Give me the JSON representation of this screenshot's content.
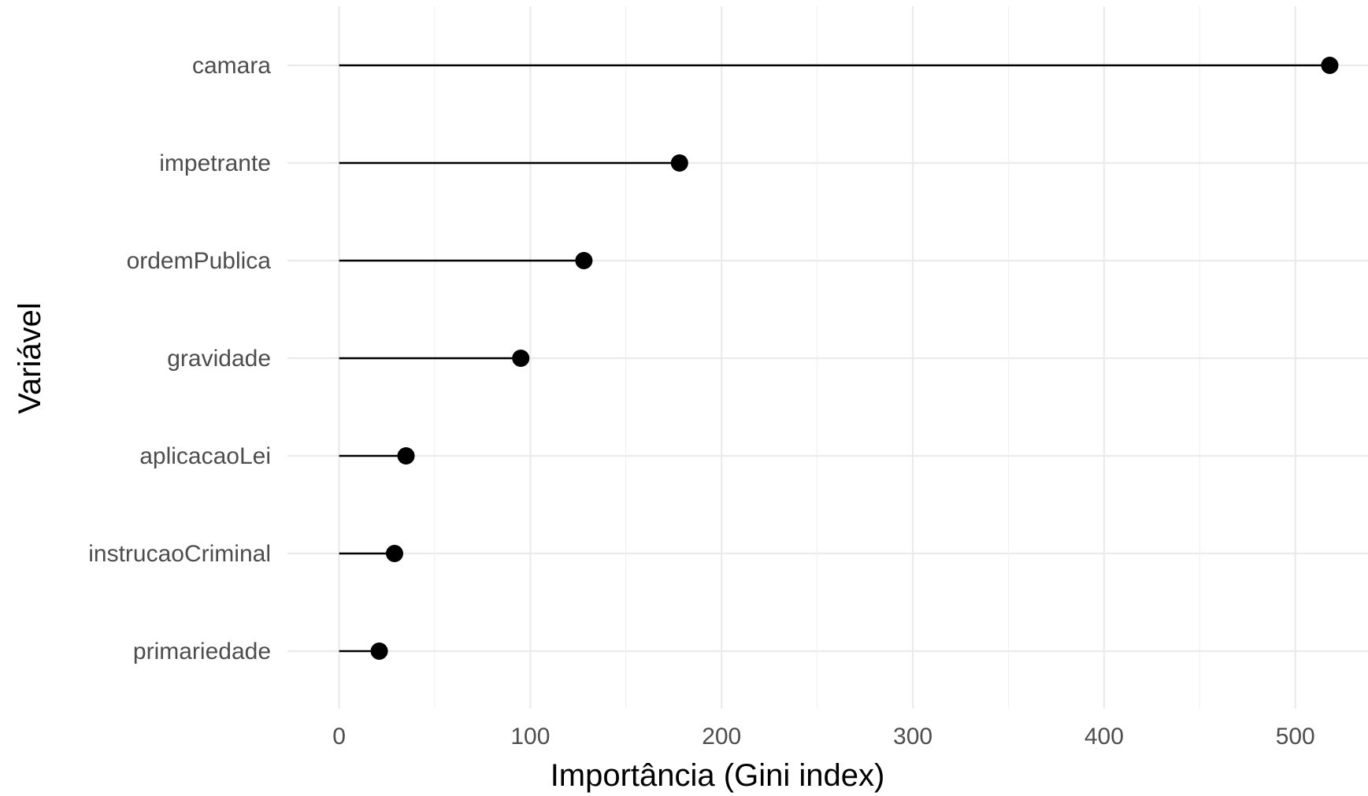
{
  "chart_data": {
    "type": "scatter",
    "style": "lollipop",
    "orientation": "horizontal",
    "categories": [
      "camara",
      "impetrante",
      "ordemPublica",
      "gravidade",
      "aplicacaoLei",
      "instrucaoCriminal",
      "primariedade"
    ],
    "values": [
      518,
      178,
      128,
      95,
      35,
      29,
      21
    ],
    "xlabel": "Importância (Gini index)",
    "ylabel": "Variável",
    "xlim": [
      -27,
      538
    ],
    "xticks": [
      0,
      100,
      200,
      300,
      400,
      500
    ],
    "xtick_labels": [
      "0",
      "100",
      "200",
      "300",
      "400",
      "500"
    ],
    "grid": true,
    "legend": "none",
    "colors": {
      "marker": "#000000",
      "grid": "#ebebeb",
      "tick_text": "#4d4d4d",
      "background": "#ffffff"
    }
  }
}
